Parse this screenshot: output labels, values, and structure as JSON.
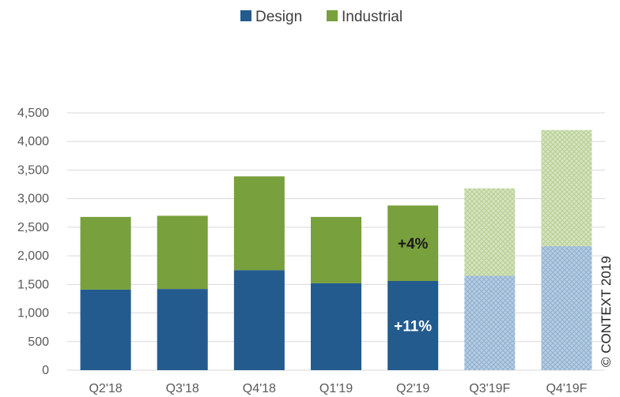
{
  "chart_data": {
    "type": "bar",
    "stacked": true,
    "categories": [
      "Q2'18",
      "Q3'18",
      "Q4'18",
      "Q1'19",
      "Q2'19",
      "Q3'19F",
      "Q4'19F"
    ],
    "forecast_categories": [
      "Q3'19F",
      "Q4'19F"
    ],
    "series": [
      {
        "name": "Design",
        "color": "#245b8f",
        "forecast_color": "#a7c4dc",
        "values": [
          1410,
          1420,
          1750,
          1520,
          1560,
          1650,
          2170
        ]
      },
      {
        "name": "Industrial",
        "color": "#78a03c",
        "forecast_color": "#cfdfb4",
        "values": [
          1270,
          1280,
          1640,
          1160,
          1320,
          1530,
          2030
        ]
      }
    ],
    "ylim": [
      0,
      4500
    ],
    "yticks": [
      "0",
      "500",
      "1,000",
      "1,500",
      "2,000",
      "2,500",
      "3,000",
      "3,500",
      "4,000",
      "4,500"
    ],
    "ytick_values": [
      0,
      500,
      1000,
      1500,
      2000,
      2500,
      3000,
      3500,
      4000,
      4500
    ],
    "grid": true,
    "legend_position": "top-center",
    "annotations": [
      {
        "text": "+4%",
        "category": "Q2'19",
        "series": "Industrial"
      },
      {
        "text": "+11%",
        "category": "Q2'19",
        "series": "Design"
      }
    ],
    "copyright": "© CONTEXT 2019"
  }
}
